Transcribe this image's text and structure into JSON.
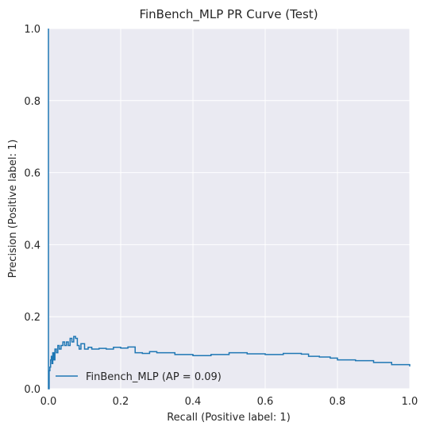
{
  "chart_data": {
    "type": "line",
    "title": "FinBench_MLP PR Curve (Test)",
    "xlabel": "Recall (Positive label: 1)",
    "ylabel": "Precision (Positive label: 1)",
    "xlim": [
      0,
      1
    ],
    "ylim": [
      0,
      1
    ],
    "x_ticks": [
      "0.0",
      "0.2",
      "0.4",
      "0.6",
      "0.8",
      "1.0"
    ],
    "y_ticks": [
      "0.0",
      "0.2",
      "0.4",
      "0.6",
      "0.8",
      "1.0"
    ],
    "grid": true,
    "legend_position": "lower-left",
    "series": [
      {
        "name": "FinBench_MLP (AP = 0.09)",
        "color": "#1f77b4",
        "x": [
          0.0,
          0.0,
          0.002,
          0.004,
          0.006,
          0.008,
          0.01,
          0.012,
          0.015,
          0.018,
          0.022,
          0.026,
          0.03,
          0.035,
          0.04,
          0.045,
          0.05,
          0.055,
          0.06,
          0.065,
          0.07,
          0.075,
          0.08,
          0.085,
          0.09,
          0.1,
          0.11,
          0.12,
          0.14,
          0.16,
          0.18,
          0.2,
          0.22,
          0.24,
          0.26,
          0.28,
          0.3,
          0.35,
          0.4,
          0.45,
          0.5,
          0.55,
          0.6,
          0.65,
          0.7,
          0.72,
          0.75,
          0.78,
          0.8,
          0.85,
          0.9,
          0.95,
          1.0
        ],
        "y": [
          1.0,
          0.0,
          0.05,
          0.06,
          0.08,
          0.09,
          0.07,
          0.1,
          0.08,
          0.11,
          0.1,
          0.12,
          0.11,
          0.12,
          0.13,
          0.12,
          0.13,
          0.12,
          0.14,
          0.13,
          0.145,
          0.14,
          0.12,
          0.11,
          0.125,
          0.11,
          0.115,
          0.11,
          0.112,
          0.11,
          0.115,
          0.113,
          0.116,
          0.1,
          0.098,
          0.103,
          0.1,
          0.095,
          0.092,
          0.095,
          0.1,
          0.097,
          0.095,
          0.098,
          0.096,
          0.09,
          0.088,
          0.085,
          0.08,
          0.078,
          0.073,
          0.067,
          0.062
        ]
      }
    ]
  }
}
